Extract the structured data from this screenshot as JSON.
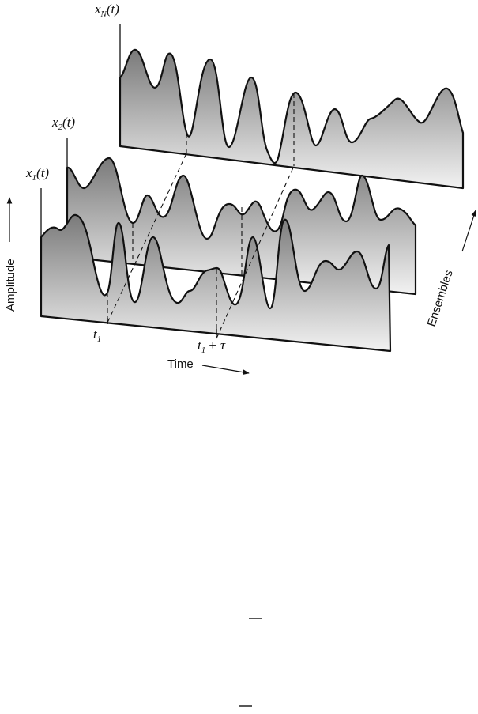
{
  "figure": {
    "ensemble_labels": {
      "x1": {
        "var": "x",
        "sub": "1",
        "arg": "(t)"
      },
      "x2": {
        "var": "x",
        "sub": "2",
        "arg": "(t)"
      },
      "xN": {
        "var": "x",
        "sub": "N",
        "arg": "(t)"
      }
    },
    "time_marks": {
      "t1": {
        "var": "t",
        "sub": "1"
      },
      "t1_tau": {
        "var": "t",
        "sub": "1",
        "rest": "+ τ"
      }
    },
    "axis_labels": {
      "amplitude": "Amplitude",
      "time": "Time",
      "ensembles": "Ensembles"
    }
  },
  "colors": {
    "shade_top": "#7a7a7a",
    "shade_bottom": "#f2f2f2",
    "ink": "#111111"
  }
}
